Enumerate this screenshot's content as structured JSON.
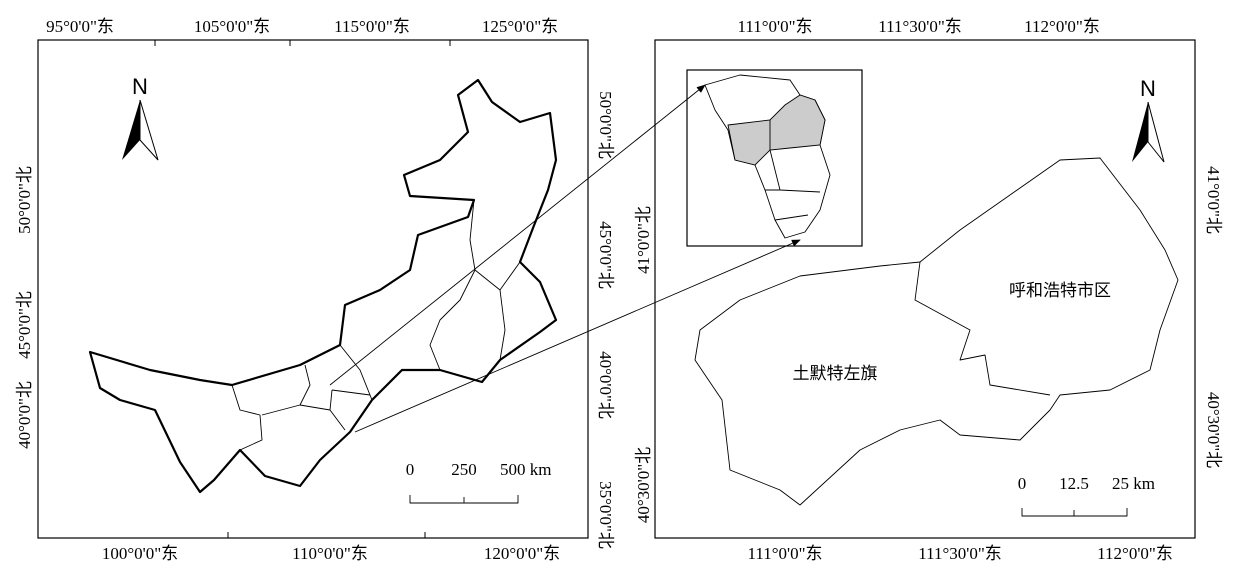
{
  "left_map": {
    "top_labels": [
      "95°0'0\"东",
      "105°0'0\"东",
      "115°0'0\"东",
      "125°0'0\"东"
    ],
    "bottom_labels": [
      "100°0'0\"东",
      "110°0'0\"东",
      "120°0'0\"东"
    ],
    "left_labels": [
      "50°0'0\"北",
      "45°0'0\"北",
      "40°0'0\"北"
    ],
    "right_labels": [
      "50°0'0\"北",
      "45°0'0\"北",
      "40°0'0\"北",
      "35°0'0\"北"
    ],
    "north": "N",
    "scale_labels": [
      "0",
      "250",
      "500 km"
    ]
  },
  "right_map": {
    "top_labels": [
      "111°0'0\"东",
      "111°30'0\"东",
      "112°0'0\"东"
    ],
    "bottom_labels": [
      "111°0'0\"东",
      "111°30'0\"东",
      "112°0'0\"东"
    ],
    "left_labels": [
      "41°0'0\"北",
      "40°30'0\"北"
    ],
    "right_labels": [
      "41°0'0\"北",
      "40°30'0\"北"
    ],
    "north": "N",
    "scale_labels": [
      "0",
      "12.5",
      "25 km"
    ],
    "regions": [
      "呼和浩特市区",
      "土默特左旗"
    ]
  }
}
